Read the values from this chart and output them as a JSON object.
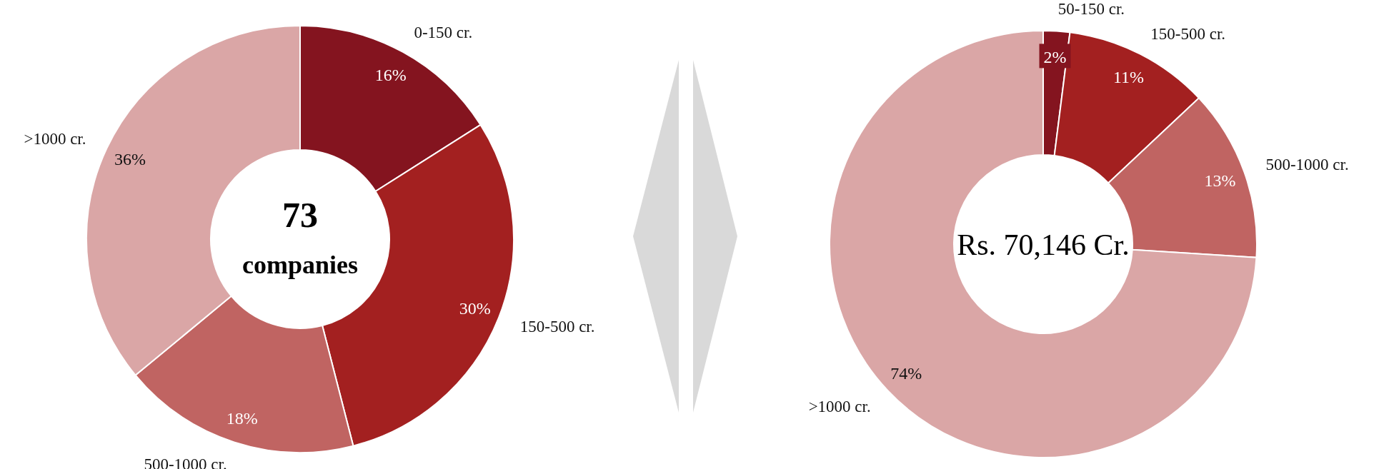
{
  "chart_data": [
    {
      "type": "donut",
      "categories": [
        "0-150 cr.",
        "150-500 cr.",
        "500-1000 cr.",
        ">1000 cr."
      ],
      "values": [
        16,
        30,
        18,
        36
      ],
      "colors": [
        "#84141f",
        "#a32020",
        "#c06462",
        "#daa6a6"
      ],
      "value_labels": [
        "16%",
        "30%",
        "18%",
        "36%"
      ],
      "annotations": [
        "73",
        "companies"
      ]
    },
    {
      "type": "donut",
      "categories": [
        "50-150 cr.",
        "150-500 cr.",
        "500-1000 cr.",
        ">1000 cr."
      ],
      "values": [
        2,
        11,
        13,
        74
      ],
      "colors": [
        "#84141f",
        "#a32020",
        "#c06462",
        "#daa6a6"
      ],
      "value_labels": [
        "2%",
        "11%",
        "13%",
        "74%"
      ],
      "annotations": [
        "Rs. 70,146 Cr."
      ]
    }
  ]
}
